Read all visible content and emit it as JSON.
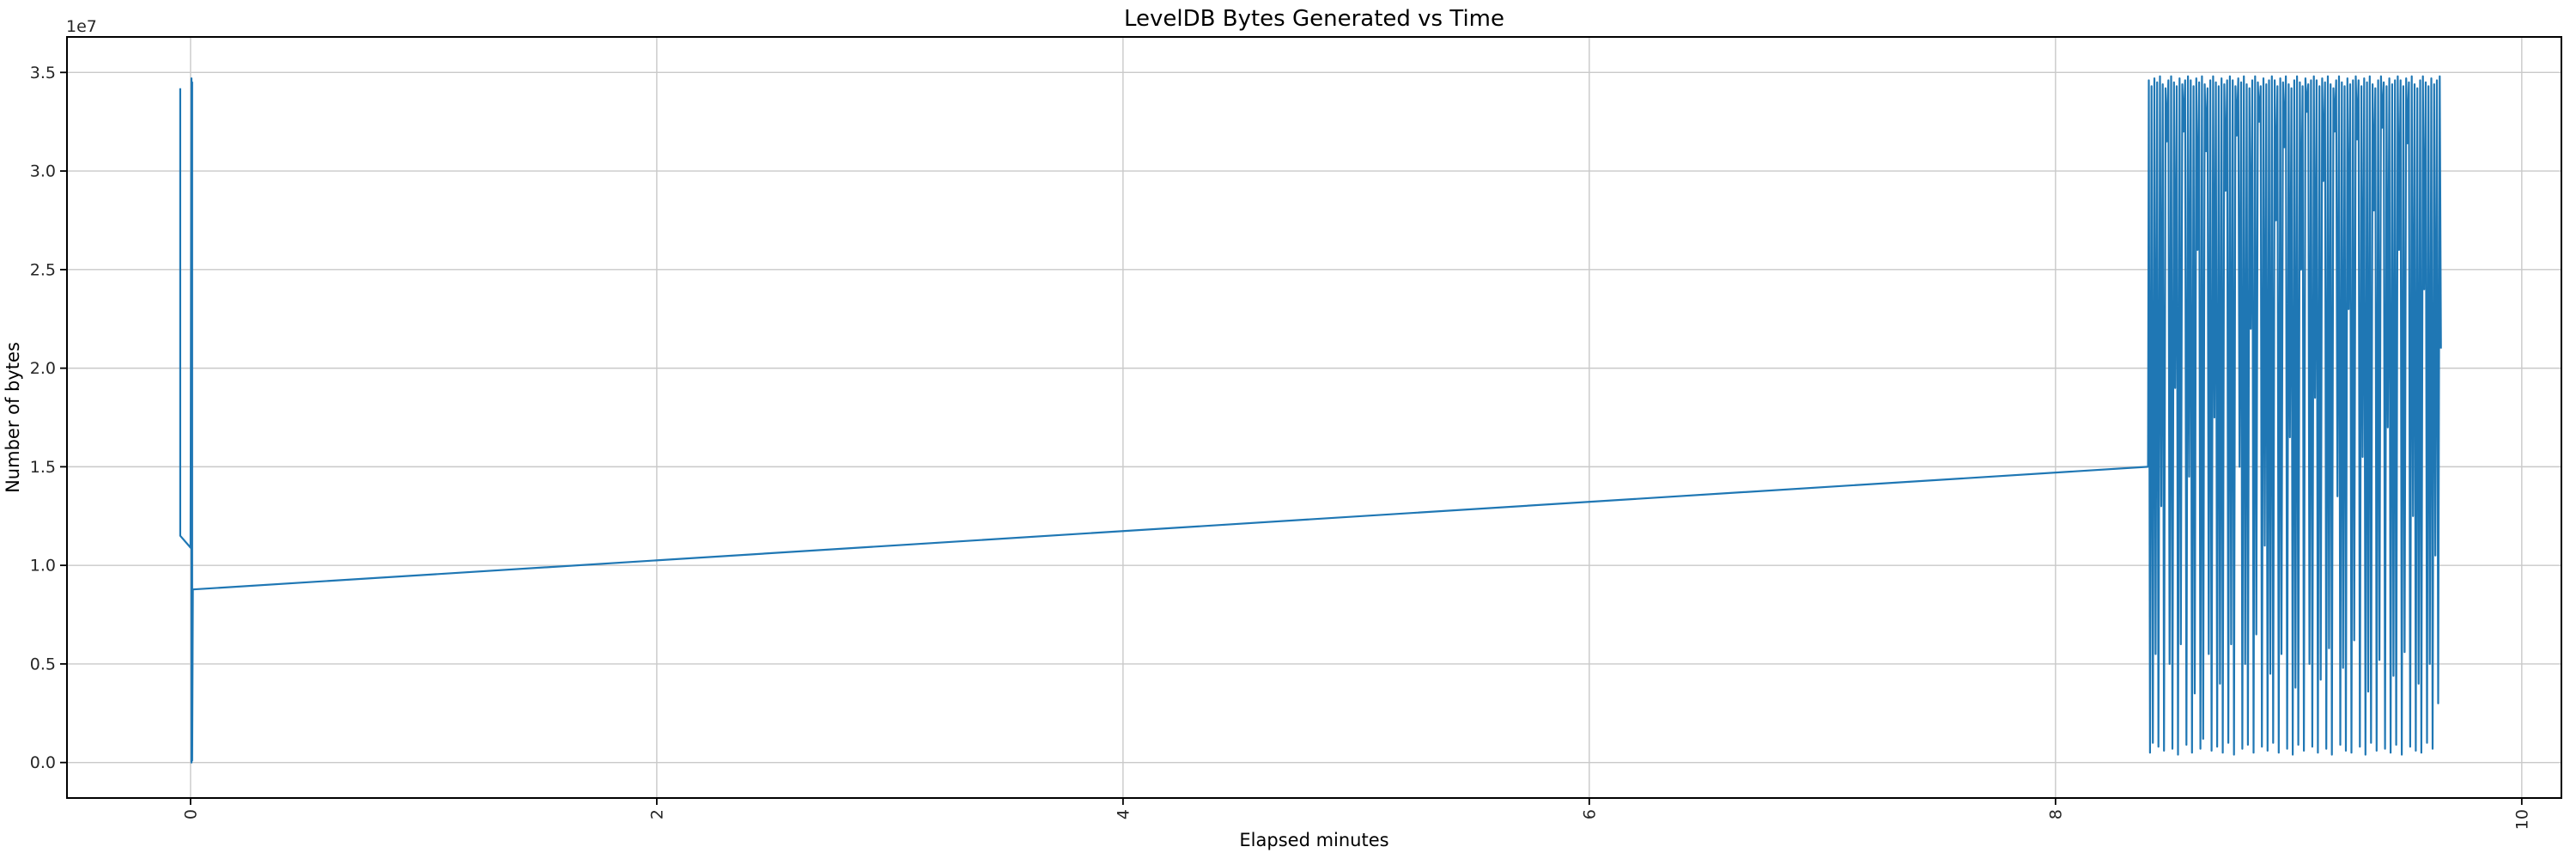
{
  "chart_data": {
    "type": "line",
    "title": "LevelDB Bytes Generated vs Time",
    "xlabel": "Elapsed minutes",
    "ylabel": "Number of bytes",
    "y_offset_text": "1e7",
    "grid": true,
    "legend": false,
    "x_tick_rotation_deg": 90,
    "xlim": [
      -0.53,
      10.17
    ],
    "ylim_1e7": [
      -0.18,
      3.68
    ],
    "x_ticks": {
      "values": [
        0,
        2,
        4,
        6,
        8,
        10
      ],
      "labels": [
        "0",
        "2",
        "4",
        "6",
        "8",
        "10"
      ]
    },
    "y_ticks_1e7": {
      "values": [
        0.0,
        0.5,
        1.0,
        1.5,
        2.0,
        2.5,
        3.0,
        3.5
      ],
      "labels": [
        "0.0",
        "0.5",
        "1.0",
        "1.5",
        "2.0",
        "2.5",
        "3.0",
        "3.5"
      ]
    },
    "style": {
      "line_color": "#1f77b4",
      "grid_color": "#c9c9c9",
      "spine_color": "#000000",
      "tick_color": "#000000",
      "background": "#ffffff"
    },
    "series": [
      {
        "name": "bytes-generated",
        "units_y": "1e7 bytes",
        "units_x": "minutes",
        "head_points": [
          [
            -0.044,
            3.42
          ],
          [
            -0.044,
            1.15
          ],
          [
            0.0,
            1.09
          ],
          [
            0.004,
            3.47
          ],
          [
            0.004,
            0.0
          ],
          [
            0.007,
            3.45
          ],
          [
            0.007,
            0.01
          ],
          [
            0.01,
            0.878
          ],
          [
            8.397,
            1.5
          ]
        ],
        "burst": {
          "x_start": 8.4,
          "x_end": 9.66,
          "step_x": 0.012,
          "dip_offset_x": 0.0054,
          "tops": [
            3.46,
            3.43,
            3.47,
            3.45,
            3.48,
            3.44,
            3.42,
            3.46,
            3.48,
            3.45,
            3.43,
            3.47,
            3.44,
            3.46,
            3.48,
            3.46,
            3.43,
            3.47,
            3.45,
            3.48,
            3.44,
            3.42,
            3.46,
            3.48,
            3.45,
            3.43,
            3.47,
            3.44,
            3.46,
            3.48,
            3.46,
            3.43,
            3.47,
            3.45,
            3.48,
            3.44,
            3.42,
            3.46,
            3.48,
            3.45,
            3.43,
            3.47,
            3.44,
            3.46,
            3.48,
            3.46,
            3.43,
            3.47,
            3.45,
            3.48,
            3.44,
            3.42,
            3.46,
            3.48,
            3.45,
            3.43,
            3.47,
            3.44,
            3.46,
            3.48,
            3.46,
            3.43,
            3.47,
            3.45,
            3.48,
            3.44,
            3.42,
            3.46,
            3.48,
            3.45,
            3.43,
            3.47,
            3.44,
            3.46,
            3.48,
            3.46,
            3.43,
            3.47,
            3.45,
            3.48,
            3.44,
            3.42,
            3.46,
            3.48,
            3.45,
            3.43,
            3.47,
            3.44,
            3.46,
            3.48,
            3.46,
            3.43,
            3.47,
            3.45,
            3.48,
            3.44,
            3.42,
            3.46,
            3.48,
            3.45,
            3.43,
            3.47,
            3.44,
            3.46,
            3.48
          ],
          "lows": [
            0.05,
            0.1,
            0.55,
            0.08,
            1.3,
            0.06,
            3.15,
            0.5,
            0.07,
            1.9,
            0.04,
            0.6,
            3.2,
            0.09,
            1.45,
            0.05,
            0.35,
            2.6,
            0.07,
            0.12,
            3.1,
            0.55,
            0.06,
            1.75,
            0.08,
            0.4,
            0.05,
            2.9,
            0.1,
            0.6,
            0.04,
            3.18,
            1.5,
            0.07,
            0.5,
            0.09,
            2.2,
            0.05,
            0.65,
            3.25,
            0.08,
            1.1,
            0.06,
            0.45,
            0.1,
            2.75,
            0.05,
            0.55,
            3.12,
            0.07,
            1.65,
            0.04,
            0.38,
            0.09,
            2.5,
            0.06,
            3.3,
            0.5,
            0.08,
            1.85,
            0.05,
            0.42,
            2.95,
            0.07,
            0.58,
            0.04,
            3.2,
            1.35,
            0.09,
            0.48,
            0.06,
            2.3,
            0.05,
            0.62,
            3.16,
            0.08,
            1.55,
            0.04,
            0.36,
            0.1,
            2.8,
            0.06,
            0.52,
            3.22,
            0.07,
            1.7,
            0.05,
            0.44,
            0.09,
            2.6,
            0.04,
            0.56,
            3.14,
            0.08,
            1.25,
            0.06,
            0.4,
            0.05,
            2.4,
            0.1,
            0.5,
            0.07,
            1.05,
            0.3,
            2.1
          ]
        },
        "description_summary": "Starts near t=0 with spikes to ~3.45e7 then drops to ~0.88e7; slow linear rise to ~1.5e7 at t~8.4; dense oscillation between ~0 and ~3.47e7 from t~8.4 to t~9.66."
      }
    ]
  }
}
